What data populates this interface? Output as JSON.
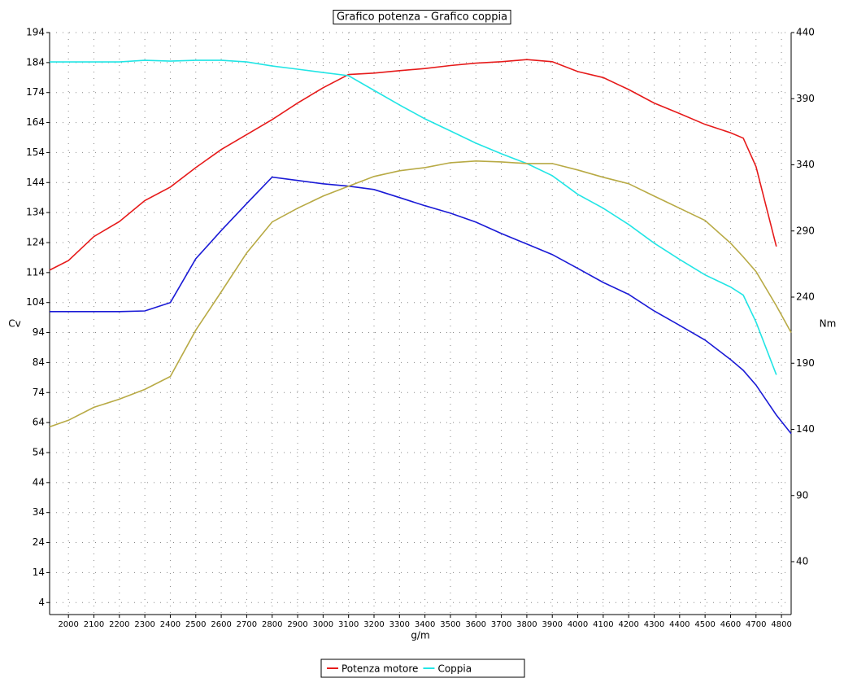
{
  "chart_data": {
    "type": "line",
    "title": "Grafico potenza - Grafico coppia",
    "xlabel": "g/m",
    "ylabel": "Cv",
    "y2label": "Nm",
    "x": [
      1926,
      2000,
      2100,
      2200,
      2300,
      2400,
      2500,
      2600,
      2700,
      2800,
      2900,
      3000,
      3100,
      3200,
      3300,
      3400,
      3500,
      3600,
      3700,
      3800,
      3900,
      4000,
      4100,
      4200,
      4300,
      4400,
      4500,
      4600,
      4650,
      4700,
      4780,
      4838
    ],
    "series": [
      {
        "name": "Potenza motore",
        "color": "#e61a1a",
        "values": [
          114.8,
          118,
          126,
          131,
          138,
          142.5,
          149,
          155,
          160,
          165,
          170.5,
          175.6,
          180,
          180.5,
          181.3,
          182,
          183,
          183.8,
          184.3,
          185,
          184.3,
          181,
          179,
          175,
          170.5,
          167,
          163.4,
          160.6,
          158.8,
          149.3,
          122.7,
          null
        ]
      },
      {
        "name": "Coppia",
        "color": "#22e5e5",
        "axis": "y2",
        "values": [
          417.8,
          417.8,
          417.8,
          417.8,
          419,
          418.4,
          419,
          419,
          417.8,
          414.7,
          412.3,
          409.8,
          407.4,
          396.3,
          385.3,
          374.8,
          365.6,
          356.4,
          348.4,
          341,
          331.8,
          317.7,
          307.2,
          294.9,
          280.8,
          268.5,
          256.8,
          247.6,
          241.5,
          221.2,
          181.3,
          null
        ]
      },
      {
        "color": "#1a1ad6",
        "values": [
          101,
          101,
          101,
          101,
          101.2,
          104,
          118.6,
          128,
          137,
          145.8,
          144.7,
          143.6,
          142.8,
          141.7,
          139,
          136.3,
          133.8,
          130.8,
          127,
          123.5,
          120,
          115.4,
          110.7,
          106.7,
          101.2,
          96.4,
          91.5,
          85,
          81.4,
          76.5,
          66.5,
          60.3
        ]
      },
      {
        "color": "#b8aa45",
        "axis": "y2",
        "values": [
          141.9,
          146.9,
          156.7,
          162.8,
          170.2,
          180,
          215,
          244,
          273.4,
          296.8,
          307.2,
          316.4,
          323.8,
          331.2,
          335.5,
          337.9,
          341.6,
          342.9,
          342.2,
          341,
          341,
          336.1,
          330.6,
          325.7,
          316.4,
          307.2,
          298,
          280.8,
          270.4,
          259.3,
          233.5,
          213.2
        ]
      }
    ],
    "xlim": [
      1926,
      4838
    ],
    "xticks": [
      2000,
      2100,
      2200,
      2300,
      2400,
      2500,
      2600,
      2700,
      2800,
      2900,
      3000,
      3100,
      3200,
      3300,
      3400,
      3500,
      3600,
      3700,
      3800,
      3900,
      4000,
      4100,
      4200,
      4300,
      4400,
      4500,
      4600,
      4700,
      4800
    ],
    "ylim": [
      0,
      194
    ],
    "yticks": [
      4,
      14,
      24,
      34,
      44,
      54,
      64,
      74,
      84,
      94,
      104,
      114,
      124,
      134,
      144,
      154,
      164,
      174,
      184,
      194
    ],
    "y2lim": [
      0,
      440
    ],
    "y2ticks": [
      40,
      90,
      140,
      190,
      240,
      290,
      340,
      390,
      440
    ],
    "grid": true,
    "legend": "bottom"
  }
}
